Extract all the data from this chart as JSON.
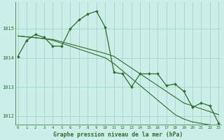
{
  "title": "Graphe pression niveau de la mer (hPa)",
  "background_color": "#cbeee8",
  "grid_color": "#a8d8cc",
  "line_color": "#2d6e2d",
  "x_hours": [
    0,
    1,
    2,
    3,
    4,
    5,
    6,
    7,
    8,
    9,
    10,
    11,
    12,
    13,
    14,
    15,
    16,
    17,
    18,
    19,
    20,
    21,
    22,
    23
  ],
  "line1_y": [
    1014.05,
    1014.6,
    1014.8,
    1014.7,
    1014.4,
    1014.4,
    1015.0,
    1015.3,
    1015.5,
    1015.6,
    1015.05,
    1013.5,
    1013.45,
    1013.0,
    1013.45,
    1013.45,
    1013.45,
    1013.05,
    1013.1,
    1012.85,
    1012.3,
    1012.45,
    1012.35,
    1011.75
  ],
  "line2_y": [
    1014.75,
    1014.72,
    1014.69,
    1014.66,
    1014.63,
    1014.55,
    1014.47,
    1014.39,
    1014.31,
    1014.23,
    1014.15,
    1014.05,
    1013.85,
    1013.65,
    1013.45,
    1013.25,
    1013.05,
    1012.85,
    1012.65,
    1012.45,
    1012.35,
    1012.25,
    1012.15,
    1012.05
  ],
  "line3_y": [
    1014.75,
    1014.72,
    1014.69,
    1014.66,
    1014.6,
    1014.5,
    1014.4,
    1014.3,
    1014.2,
    1014.1,
    1014.0,
    1013.8,
    1013.55,
    1013.3,
    1013.05,
    1012.8,
    1012.55,
    1012.3,
    1012.05,
    1011.9,
    1011.8,
    1011.75,
    1011.7,
    1011.65
  ],
  "ylim": [
    1011.7,
    1015.9
  ],
  "yticks": [
    1012,
    1013,
    1014,
    1015
  ],
  "xticks": [
    0,
    1,
    2,
    3,
    4,
    5,
    6,
    7,
    8,
    9,
    10,
    11,
    12,
    13,
    14,
    15,
    16,
    17,
    18,
    19,
    20,
    21,
    22,
    23
  ],
  "xtick_fontsize": 4.2,
  "ytick_fontsize": 5.0,
  "title_fontsize": 5.8,
  "linewidth_main": 0.9,
  "linewidth_trend": 0.8,
  "marker_size": 2.0
}
